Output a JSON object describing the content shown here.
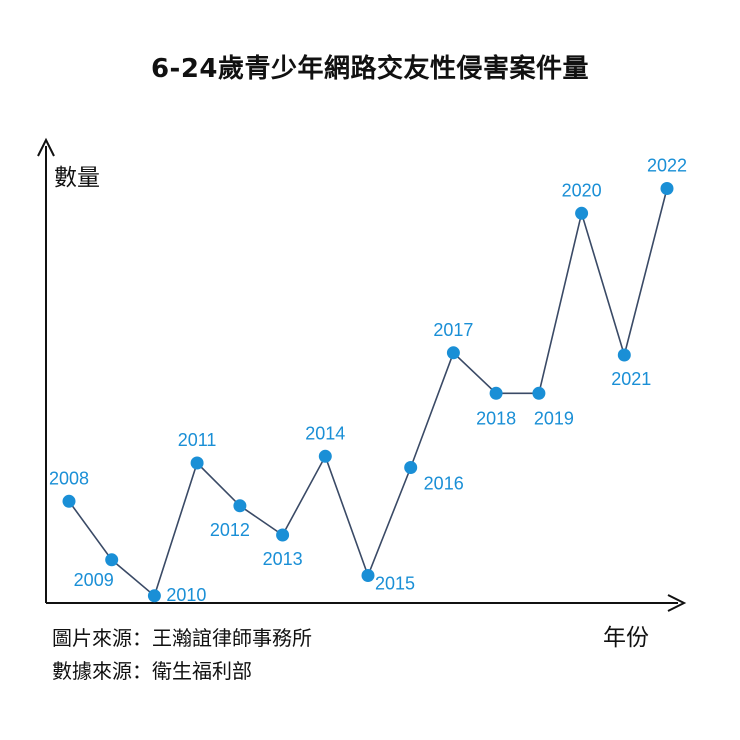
{
  "chart_data": {
    "type": "line",
    "title": "6-24歲青少年網路交友性侵害案件量",
    "xlabel": "年份",
    "ylabel": "數量",
    "x": [
      "2008",
      "2009",
      "2010",
      "2011",
      "2012",
      "2013",
      "2014",
      "2015",
      "2016",
      "2017",
      "2018",
      "2019",
      "2020",
      "2021",
      "2022"
    ],
    "series": [
      {
        "values": [
          21.5,
          8.5,
          0.5,
          30.0,
          20.5,
          14.0,
          31.5,
          5.0,
          29.0,
          54.5,
          45.5,
          45.5,
          85.5,
          54.0,
          91.0
        ]
      }
    ],
    "ylim": [
      0,
      100
    ],
    "grid": false,
    "axis_ticks_shown": false,
    "line_color": "#3a4a66",
    "marker_color": "#1a8fd6",
    "label_color": "#1a8fd6"
  },
  "sources": {
    "image_source": "圖片來源：王瀚誼律師事務所",
    "data_source": "數據來源：衛生福利部"
  }
}
